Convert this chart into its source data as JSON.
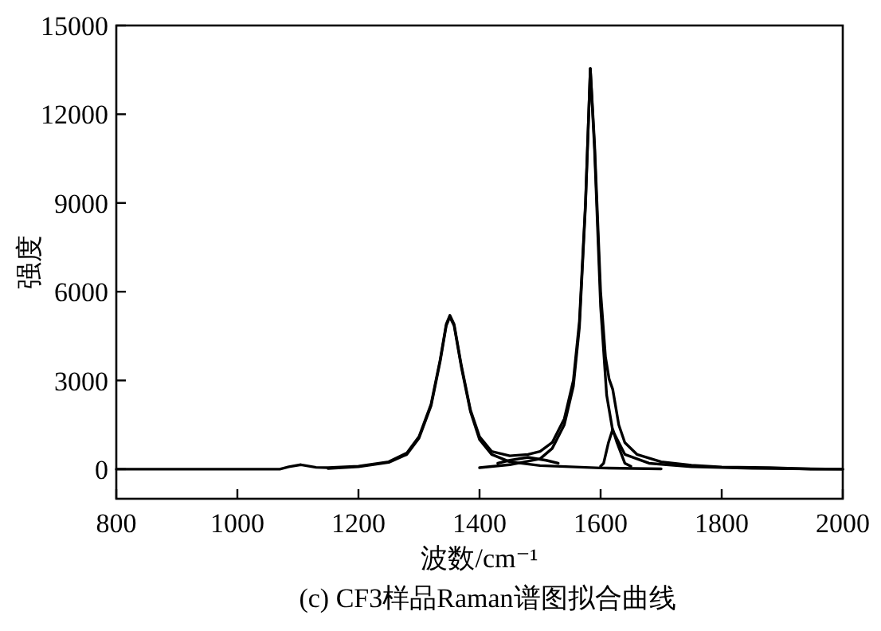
{
  "chart_data": {
    "type": "line",
    "xlabel": "波数/cm⁻¹",
    "ylabel": "强度",
    "annotations": [
      "(c) CF3样品Raman谱图拟合曲线"
    ],
    "xlim": [
      800,
      2000
    ],
    "xticks": [
      800,
      1000,
      1200,
      1400,
      1600,
      1800,
      2000
    ],
    "ylim": [
      -1000,
      15000
    ],
    "yticks": [
      0,
      3000,
      6000,
      9000,
      12000,
      15000
    ],
    "grid": false,
    "marker": "none",
    "line_style": "solid",
    "series": [
      {
        "color": "#000000",
        "x": [
          800,
          1070,
          1085,
          1105,
          1130,
          1150,
          1200,
          1250,
          1280,
          1300,
          1320,
          1335,
          1345,
          1351,
          1358,
          1370,
          1385,
          1400,
          1420,
          1450,
          1480,
          1500,
          1520,
          1540,
          1555,
          1565,
          1575,
          1583,
          1590,
          1600,
          1608,
          1614,
          1620,
          1630,
          1640,
          1660,
          1700,
          1750,
          1800,
          1880,
          1950,
          2000
        ],
        "values": [
          0,
          0,
          80,
          150,
          60,
          50,
          100,
          250,
          550,
          1100,
          2200,
          3700,
          4900,
          5200,
          4900,
          3500,
          2000,
          1100,
          600,
          450,
          500,
          600,
          900,
          1700,
          3000,
          5000,
          9000,
          13550,
          11000,
          6000,
          3800,
          3050,
          2700,
          1500,
          900,
          500,
          250,
          130,
          70,
          50,
          0,
          0
        ]
      },
      {
        "color": "#000000",
        "x": [
          1400,
          1450,
          1500,
          1520,
          1540,
          1555,
          1565,
          1575,
          1583,
          1590,
          1600,
          1610,
          1620,
          1640,
          1680,
          1750,
          1850,
          2000
        ],
        "values": [
          50,
          150,
          350,
          700,
          1500,
          2800,
          4800,
          8900,
          13550,
          10800,
          5500,
          2500,
          1300,
          500,
          200,
          80,
          30,
          0
        ]
      },
      {
        "color": "#000000",
        "x": [
          1150,
          1200,
          1250,
          1280,
          1300,
          1320,
          1335,
          1345,
          1351,
          1358,
          1370,
          1385,
          1400,
          1420,
          1450,
          1500,
          1600,
          1700
        ],
        "values": [
          20,
          80,
          230,
          500,
          1050,
          2150,
          3650,
          4850,
          5150,
          4850,
          3450,
          1950,
          1000,
          500,
          250,
          120,
          40,
          10
        ]
      },
      {
        "color": "#000000",
        "x": [
          1600,
          1605,
          1613,
          1620,
          1627,
          1640,
          1650
        ],
        "values": [
          100,
          200,
          900,
          1350,
          900,
          200,
          100
        ]
      },
      {
        "color": "#000000",
        "x": [
          1430,
          1450,
          1480,
          1510,
          1530
        ],
        "values": [
          200,
          300,
          400,
          300,
          200
        ]
      }
    ]
  }
}
